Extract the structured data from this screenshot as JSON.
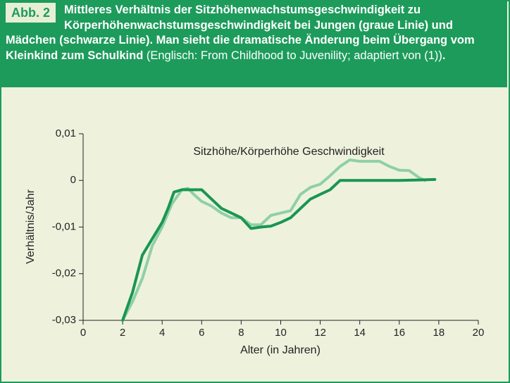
{
  "figure": {
    "label": "Abb. 2",
    "caption_bold": "Mittleres Verhältnis der Sitzhöhenwachstumsgeschwindigkeit zu Körperhöhenwachstumsgeschwindigkeit bei Jungen (graue Linie) und Mädchen (schwarze Linie). Man sieht die dramatische Änderung beim Übergang vom Kleinkind zum Schulkind",
    "caption_normal": "(Englisch: From Childhood to Juvenility; adaptiert von (1))",
    "caption_end": "."
  },
  "chart_data": {
    "type": "line",
    "annotation": "Sitzhöhe/Körperhöhe Geschwindigkeit",
    "x_label": "Alter (in Jahren)",
    "y_label": "Verhältnis/Jahr",
    "xlim": [
      0,
      20
    ],
    "xticks": [
      0,
      2,
      4,
      6,
      8,
      10,
      12,
      14,
      16,
      18,
      20
    ],
    "ylim": [
      -0.03,
      0.01
    ],
    "yticks": [
      {
        "value": -0.03,
        "label": "-0,03"
      },
      {
        "value": -0.02,
        "label": "-0,02"
      },
      {
        "value": -0.01,
        "label": "-0,01"
      },
      0,
      {
        "value": 0.01,
        "label": "0,01"
      }
    ],
    "series": [
      {
        "color": "#8fd0a6",
        "x": [
          2,
          2.5,
          3,
          3.5,
          4,
          4.5,
          5,
          5.3,
          5.6,
          6,
          6.5,
          7,
          7.5,
          8,
          8.5,
          9,
          9.5,
          10,
          10.5,
          11,
          11.5,
          12,
          12.5,
          13,
          13.5,
          14,
          15,
          15.5,
          16,
          16.5,
          17,
          17.3
        ],
        "values": [
          -0.03,
          -0.026,
          -0.021,
          -0.014,
          -0.01,
          -0.005,
          -0.002,
          -0.0017,
          -0.003,
          -0.0045,
          -0.0055,
          -0.007,
          -0.008,
          -0.008,
          -0.0095,
          -0.0095,
          -0.0075,
          -0.007,
          -0.0065,
          -0.003,
          -0.0015,
          -0.0008,
          0.001,
          0.003,
          0.0044,
          0.0041,
          0.0041,
          0.003,
          0.0022,
          0.0021,
          0.0006,
          0
        ]
      },
      {
        "color": "#1a9650",
        "x": [
          2,
          2.5,
          3,
          3.5,
          4,
          4.3,
          4.6,
          5,
          5.5,
          6,
          6.5,
          7,
          7.5,
          8,
          8.5,
          9,
          9.5,
          10,
          10.5,
          11,
          11.5,
          12,
          12.5,
          13,
          13.5,
          14,
          15,
          16,
          17,
          17.8
        ],
        "values": [
          -0.03,
          -0.024,
          -0.016,
          -0.0125,
          -0.009,
          -0.006,
          -0.0025,
          -0.002,
          -0.002,
          -0.002,
          -0.004,
          -0.006,
          -0.007,
          -0.008,
          -0.0103,
          -0.01,
          -0.0098,
          -0.009,
          -0.008,
          -0.006,
          -0.004,
          -0.003,
          -0.002,
          0,
          0,
          0,
          0,
          0,
          0.0001,
          0.0002
        ]
      }
    ]
  }
}
